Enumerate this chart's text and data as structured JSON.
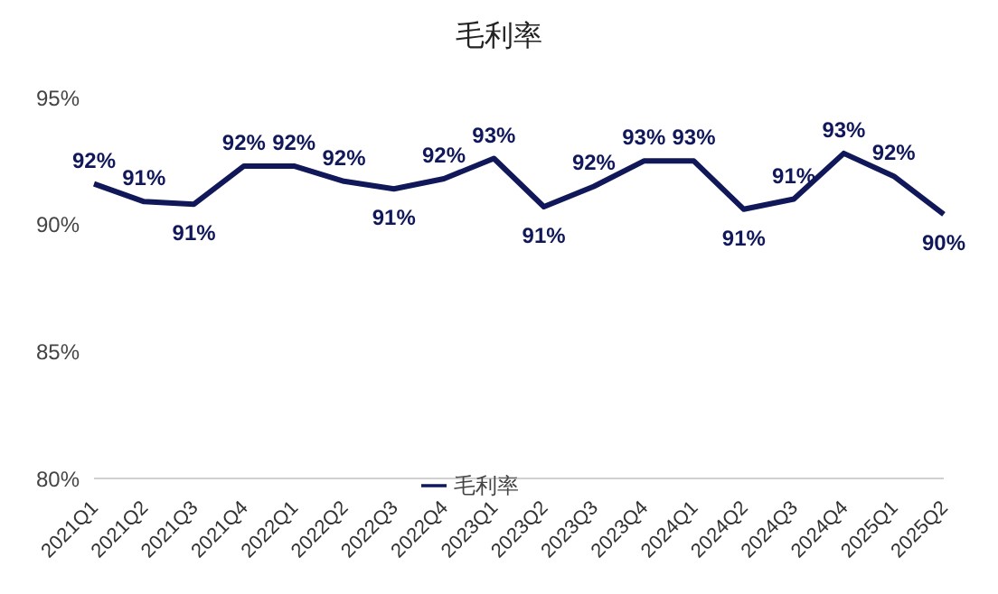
{
  "chart_data": {
    "type": "line",
    "title": "毛利率",
    "categories": [
      "2021Q1",
      "2021Q2",
      "2021Q3",
      "2021Q4",
      "2022Q1",
      "2022Q2",
      "2022Q3",
      "2022Q4",
      "2023Q1",
      "2023Q2",
      "2023Q3",
      "2023Q4",
      "2024Q1",
      "2024Q2",
      "2024Q3",
      "2024Q4",
      "2025Q1",
      "2025Q2"
    ],
    "series": [
      {
        "name": "毛利率",
        "color": "#10185a",
        "values": [
          91.6,
          90.9,
          90.8,
          92.3,
          92.3,
          91.7,
          91.4,
          91.8,
          92.6,
          90.7,
          91.5,
          92.5,
          92.5,
          90.6,
          91.0,
          92.8,
          91.9,
          90.4
        ],
        "value_labels": [
          "92%",
          "91%",
          "91%",
          "92%",
          "92%",
          "92%",
          "91%",
          "92%",
          "93%",
          "91%",
          "92%",
          "93%",
          "93%",
          "91%",
          "91%",
          "93%",
          "92%",
          "90%"
        ]
      }
    ],
    "ylim": [
      80,
      95
    ],
    "yticks": [
      {
        "value": 80,
        "label": "80%"
      },
      {
        "value": 85,
        "label": "85%"
      },
      {
        "value": 90,
        "label": "90%"
      },
      {
        "value": 95,
        "label": "95%"
      }
    ],
    "grid": false,
    "legend": "bottom",
    "marker": "none",
    "line_style": "solid"
  }
}
